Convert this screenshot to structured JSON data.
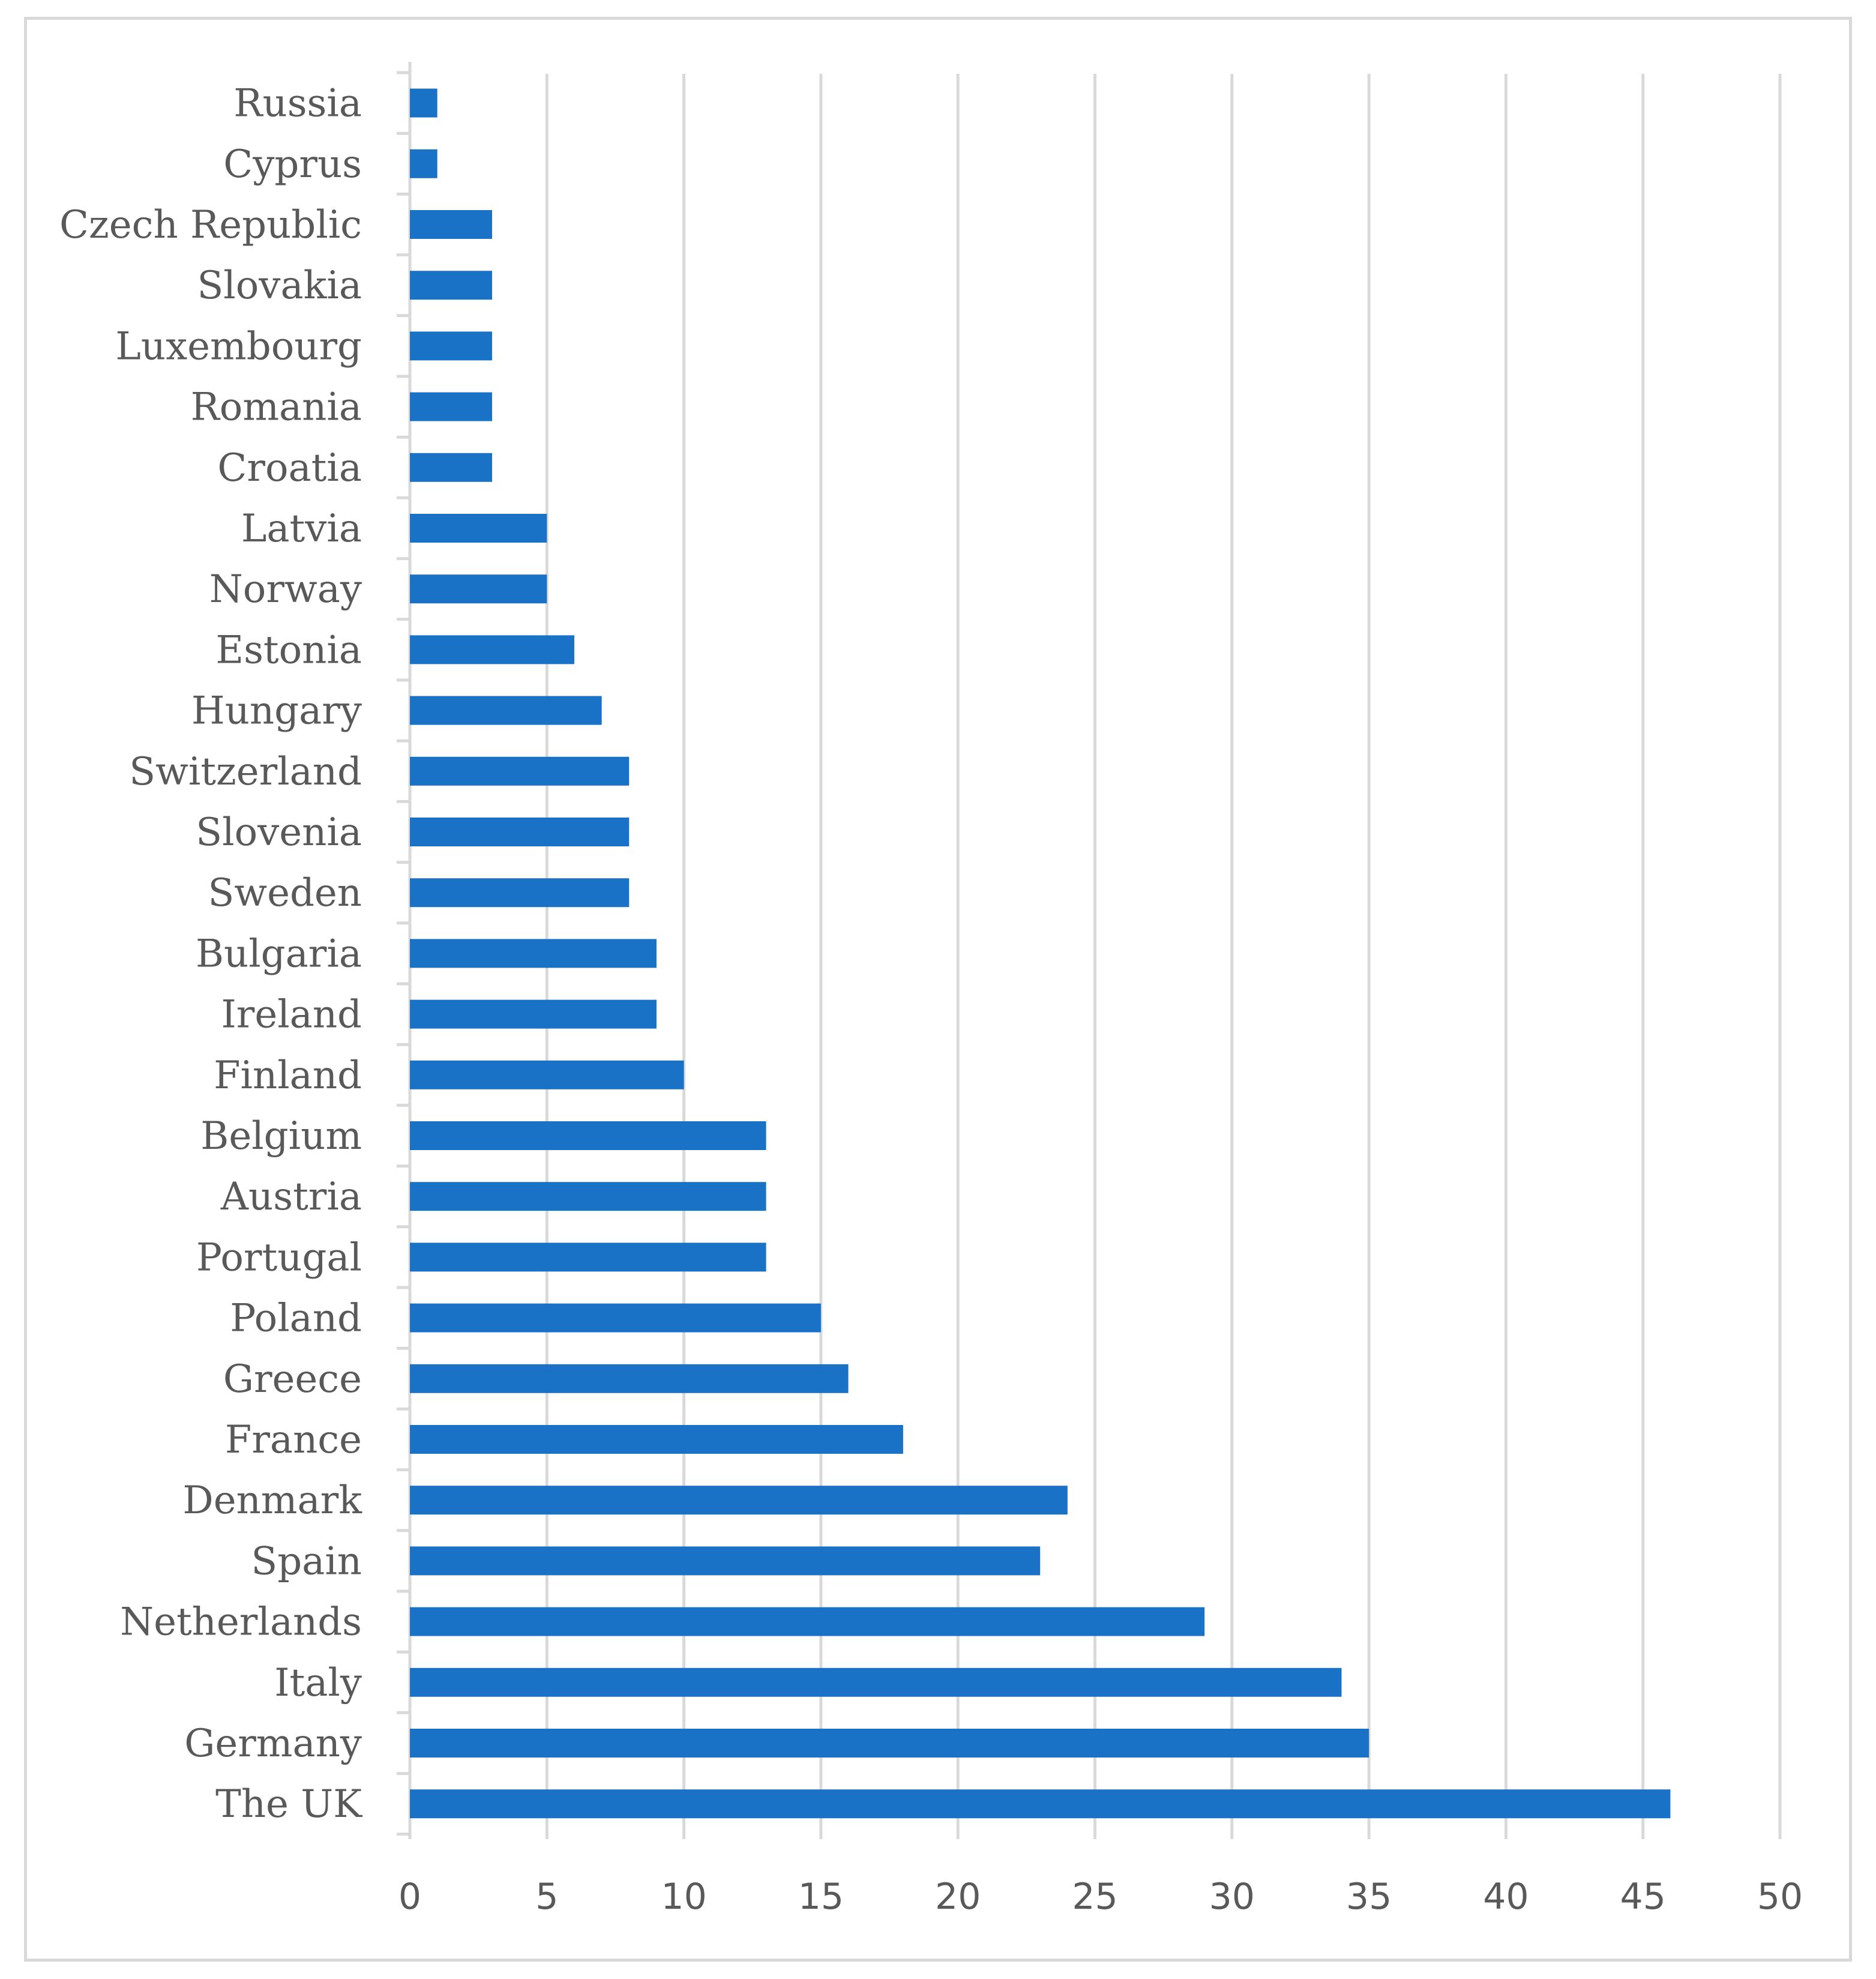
{
  "chart_data": {
    "type": "bar",
    "orientation": "horizontal",
    "title": "",
    "xlabel": "",
    "ylabel": "",
    "categories": [
      "Russia",
      "Cyprus",
      "Czech Republic",
      "Slovakia",
      "Luxembourg",
      "Romania",
      "Croatia",
      "Latvia",
      "Norway",
      "Estonia",
      "Hungary",
      "Switzerland",
      "Slovenia",
      "Sweden",
      "Bulgaria",
      "Ireland",
      "Finland",
      "Belgium",
      "Austria",
      "Portugal",
      "Poland",
      "Greece",
      "France",
      "Denmark",
      "Spain",
      "Netherlands",
      "Italy",
      "Germany",
      "The UK"
    ],
    "values": [
      1,
      1,
      3,
      3,
      3,
      3,
      3,
      5,
      5,
      6,
      7,
      8,
      8,
      8,
      9,
      9,
      10,
      13,
      13,
      13,
      15,
      16,
      18,
      24,
      23,
      29,
      34,
      35,
      46
    ],
    "xlim": [
      0,
      50
    ],
    "xticks": [
      "0",
      "5",
      "10",
      "15",
      "20",
      "25",
      "30",
      "35",
      "40",
      "45",
      "50"
    ],
    "grid": true,
    "legend": "none",
    "bar_color": "#1a72c7",
    "grid_color": "#d9d9d9",
    "label_color": "#595959"
  }
}
